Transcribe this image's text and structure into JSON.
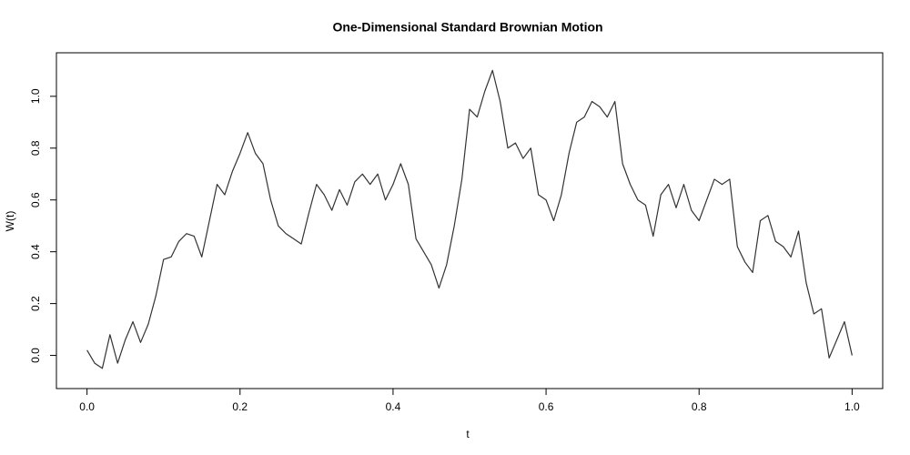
{
  "chart_data": {
    "type": "line",
    "title": "One-Dimensional Standard Brownian Motion",
    "x_label": "t",
    "y_label": "W(t)",
    "color": "#333333",
    "x": [
      0,
      0.01,
      0.02,
      0.03,
      0.04,
      0.05,
      0.06,
      0.07,
      0.08,
      0.09,
      0.1,
      0.11,
      0.12,
      0.13,
      0.14,
      0.15,
      0.16,
      0.17,
      0.18,
      0.19,
      0.2,
      0.21,
      0.22,
      0.23,
      0.24,
      0.25,
      0.26,
      0.27,
      0.28,
      0.29,
      0.3,
      0.31,
      0.32,
      0.33,
      0.34,
      0.35,
      0.36,
      0.37,
      0.38,
      0.39,
      0.4,
      0.41,
      0.42,
      0.43,
      0.44,
      0.45,
      0.46,
      0.47,
      0.48,
      0.49,
      0.5,
      0.51,
      0.52,
      0.53,
      0.54,
      0.55,
      0.56,
      0.57,
      0.58,
      0.59,
      0.6,
      0.61,
      0.62,
      0.63,
      0.64,
      0.65,
      0.66,
      0.67,
      0.68,
      0.69,
      0.7,
      0.71,
      0.72,
      0.73,
      0.74,
      0.75,
      0.76,
      0.77,
      0.78,
      0.79,
      0.8,
      0.81,
      0.82,
      0.83,
      0.84,
      0.85,
      0.86,
      0.87,
      0.88,
      0.89,
      0.9,
      0.91,
      0.92,
      0.93,
      0.94,
      0.95,
      0.96,
      0.97,
      0.98,
      0.99,
      1
    ],
    "values": [
      0.02,
      -0.03,
      -0.05,
      0.08,
      -0.03,
      0.06,
      0.13,
      0.05,
      0.12,
      0.23,
      0.37,
      0.38,
      0.44,
      0.47,
      0.46,
      0.38,
      0.52,
      0.66,
      0.62,
      0.71,
      0.78,
      0.86,
      0.78,
      0.74,
      0.6,
      0.5,
      0.47,
      0.45,
      0.43,
      0.55,
      0.66,
      0.62,
      0.56,
      0.64,
      0.58,
      0.67,
      0.7,
      0.66,
      0.7,
      0.6,
      0.66,
      0.74,
      0.66,
      0.45,
      0.4,
      0.35,
      0.26,
      0.35,
      0.5,
      0.68,
      0.95,
      0.92,
      1.02,
      1.1,
      0.98,
      0.8,
      0.82,
      0.76,
      0.8,
      0.62,
      0.6,
      0.52,
      0.62,
      0.78,
      0.9,
      0.92,
      0.98,
      0.96,
      0.92,
      0.98,
      0.74,
      0.66,
      0.6,
      0.58,
      0.46,
      0.62,
      0.66,
      0.57,
      0.66,
      0.56,
      0.52,
      0.6,
      0.68,
      0.66,
      0.68,
      0.42,
      0.36,
      0.32,
      0.52,
      0.54,
      0.44,
      0.42,
      0.38,
      0.48,
      0.28,
      0.16,
      0.18,
      -0.01,
      0.06,
      0.13,
      0
    ],
    "xlim": [
      -0.04,
      1.04
    ],
    "xticks": [
      {
        "value": 0,
        "label": "0.0"
      },
      0.2,
      0.4,
      0.6,
      0.8,
      {
        "value": 1,
        "label": "1.0"
      }
    ],
    "ylim": [
      -0.128,
      1.168
    ],
    "yticks": [
      {
        "value": 0,
        "label": "0.0"
      },
      0.2,
      0.4,
      0.6,
      0.8,
      {
        "value": 1,
        "label": "1.0"
      }
    ]
  }
}
